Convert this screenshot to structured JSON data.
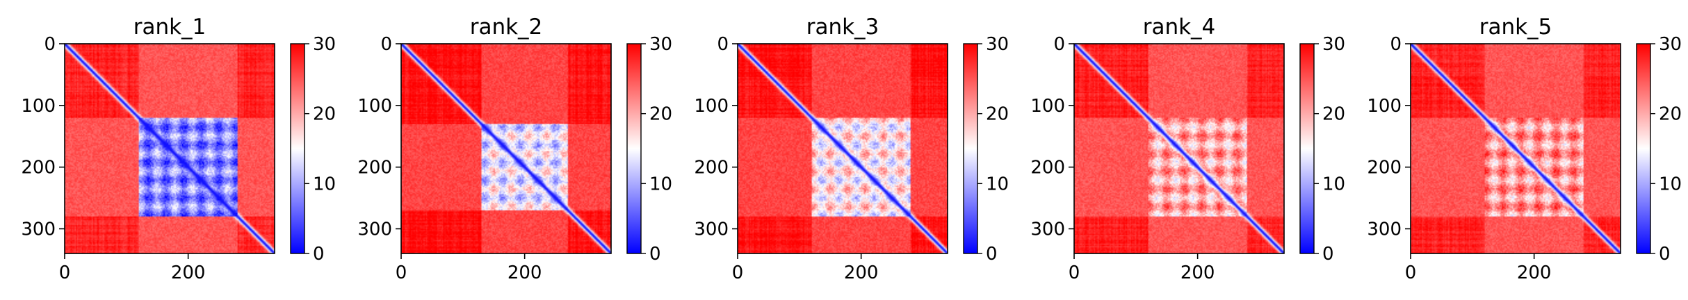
{
  "chart_data": [
    {
      "type": "heatmap",
      "title": "rank_1",
      "matrix_size": 340,
      "xlim": [
        0,
        340
      ],
      "ylim": [
        340,
        0
      ],
      "xticks": [
        0,
        200
      ],
      "yticks": [
        0,
        100,
        200,
        300
      ],
      "colorbar": {
        "min": 0,
        "max": 30,
        "ticks": [
          0,
          10,
          20,
          30
        ],
        "colormap": "bwr"
      },
      "description": "Predicted aligned error map: low-error diagonal, low-error block around residues 120-280",
      "low_error_block": {
        "start": 120,
        "end": 280,
        "value": 8
      },
      "background_value": 28,
      "diagonal_value": 1
    },
    {
      "type": "heatmap",
      "title": "rank_2",
      "matrix_size": 340,
      "xlim": [
        0,
        340
      ],
      "ylim": [
        340,
        0
      ],
      "xticks": [
        0,
        200
      ],
      "yticks": [
        0,
        100,
        200,
        300
      ],
      "colorbar": {
        "min": 0,
        "max": 30,
        "ticks": [
          0,
          10,
          20,
          30
        ],
        "colormap": "bwr"
      },
      "low_error_block": {
        "start": 130,
        "end": 270,
        "value": 14
      },
      "background_value": 29,
      "diagonal_value": 1
    },
    {
      "type": "heatmap",
      "title": "rank_3",
      "matrix_size": 340,
      "xlim": [
        0,
        340
      ],
      "ylim": [
        340,
        0
      ],
      "xticks": [
        0,
        200
      ],
      "yticks": [
        0,
        100,
        200,
        300
      ],
      "colorbar": {
        "min": 0,
        "max": 30,
        "ticks": [
          0,
          10,
          20,
          30
        ],
        "colormap": "bwr"
      },
      "low_error_block": {
        "start": 120,
        "end": 280,
        "value": 16
      },
      "background_value": 29,
      "diagonal_value": 1
    },
    {
      "type": "heatmap",
      "title": "rank_4",
      "matrix_size": 340,
      "xlim": [
        0,
        340
      ],
      "ylim": [
        340,
        0
      ],
      "xticks": [
        0,
        200
      ],
      "yticks": [
        0,
        100,
        200,
        300
      ],
      "colorbar": {
        "min": 0,
        "max": 30,
        "ticks": [
          0,
          10,
          20,
          30
        ],
        "colormap": "bwr"
      },
      "low_error_block": {
        "start": 120,
        "end": 280,
        "value": 20
      },
      "background_value": 28,
      "diagonal_value": 1
    },
    {
      "type": "heatmap",
      "title": "rank_5",
      "matrix_size": 340,
      "xlim": [
        0,
        340
      ],
      "ylim": [
        340,
        0
      ],
      "xticks": [
        0,
        200
      ],
      "yticks": [
        0,
        100,
        200,
        300
      ],
      "colorbar": {
        "min": 0,
        "max": 30,
        "ticks": [
          0,
          10,
          20,
          30
        ],
        "colormap": "bwr"
      },
      "low_error_block": {
        "start": 120,
        "end": 280,
        "value": 21
      },
      "background_value": 28,
      "diagonal_value": 1
    }
  ],
  "colors": {
    "low": "#0000ff",
    "mid": "#ffffff",
    "high": "#ff0000"
  }
}
